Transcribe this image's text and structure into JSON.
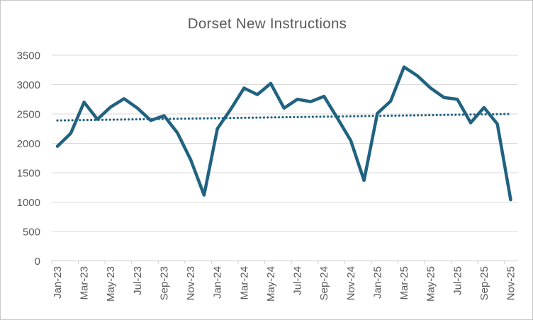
{
  "chart": {
    "title": "Dorset New Instructions"
  },
  "chart_data": {
    "type": "line",
    "title": "Dorset New Instructions",
    "categories": [
      "Jan-23",
      "Feb-23",
      "Mar-23",
      "Apr-23",
      "May-23",
      "Jun-23",
      "Jul-23",
      "Aug-23",
      "Sep-23",
      "Oct-23",
      "Nov-23",
      "Dec-23",
      "Jan-24",
      "Feb-24",
      "Mar-24",
      "Apr-24",
      "May-24",
      "Jun-24",
      "Jul-24",
      "Aug-24",
      "Sep-24",
      "Oct-24",
      "Nov-24",
      "Dec-24",
      "Jan-25",
      "Feb-25",
      "Mar-25",
      "Apr-25",
      "May-25",
      "Jun-25",
      "Jul-25",
      "Aug-25",
      "Sep-25",
      "Oct-25",
      "Nov-25"
    ],
    "series": [
      {
        "name": "New Instructions",
        "style": "solid",
        "color": "#206280",
        "values": [
          1950,
          2170,
          2700,
          2410,
          2620,
          2760,
          2600,
          2390,
          2470,
          2180,
          1720,
          1120,
          2250,
          2580,
          2940,
          2830,
          3020,
          2600,
          2750,
          2710,
          2800,
          2430,
          2050,
          1370,
          2510,
          2720,
          3300,
          3150,
          2940,
          2780,
          2750,
          2350,
          2610,
          2330,
          1040
        ]
      },
      {
        "name": "Linear trend",
        "style": "dotted",
        "color": "#206280",
        "endpoints": [
          2390,
          2500
        ]
      }
    ],
    "xlabel": "",
    "ylabel": "",
    "ylim": [
      0,
      3500
    ],
    "y_ticks": [
      0,
      500,
      1000,
      1500,
      2000,
      2500,
      3000,
      3500
    ],
    "x_tick_labels": [
      "Jan-23",
      "Mar-23",
      "May-23",
      "Jul-23",
      "Sep-23",
      "Nov-23",
      "Jan-24",
      "Mar-24",
      "May-24",
      "Jul-24",
      "Sep-24",
      "Nov-24",
      "Jan-25",
      "Mar-25",
      "May-25",
      "Jul-25",
      "Sep-25",
      "Nov-25"
    ],
    "x_tick_label_interval": 2,
    "grid": "horizontal",
    "legend": "none",
    "colors": {
      "grid": "#d9d9d9",
      "axis": "#c9c9c9",
      "labels": "#595959",
      "title": "#595959"
    }
  }
}
